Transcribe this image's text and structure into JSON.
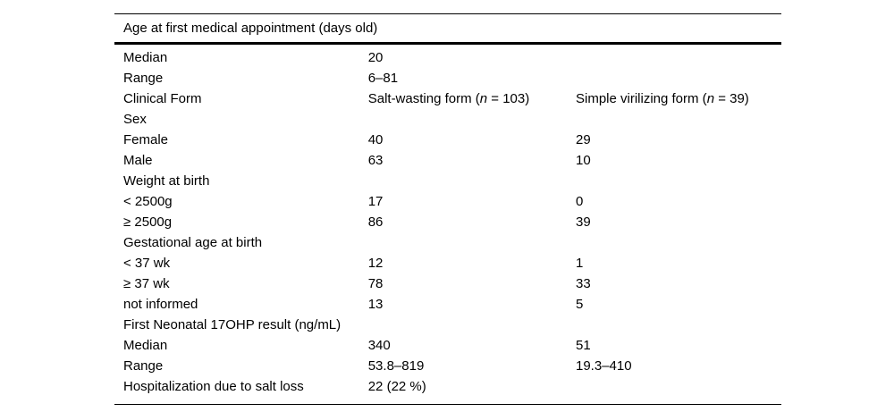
{
  "table": {
    "title": "Age at first medical appointment (days old)",
    "rows": {
      "age_median": {
        "label": "Median",
        "sw": "20",
        "sv": ""
      },
      "age_range": {
        "label": "Range",
        "sw": "6–81",
        "sv": ""
      },
      "clinical_form": {
        "label": "Clinical Form",
        "sw_prefix": "Salt-wasting form (",
        "sw_n": "n",
        "sw_suffix": " = 103)",
        "sv_prefix": "Simple virilizing form (",
        "sv_n": "n",
        "sv_suffix": " = 39)"
      },
      "sex": {
        "label": "Sex",
        "sw": "",
        "sv": ""
      },
      "female": {
        "label": "Female",
        "sw": "40",
        "sv": "29"
      },
      "male": {
        "label": "Male",
        "sw": "63",
        "sv": "10"
      },
      "weight": {
        "label": "Weight at birth",
        "sw": "",
        "sv": ""
      },
      "weight_lt2500": {
        "label": "< 2500g",
        "sw": "17",
        "sv": "0"
      },
      "weight_ge2500": {
        "label": "≥ 2500g",
        "sw": "86",
        "sv": "39"
      },
      "gestational": {
        "label": "Gestational age at birth",
        "sw": "",
        "sv": ""
      },
      "ga_lt37": {
        "label": "< 37 wk",
        "sw": "12",
        "sv": "1"
      },
      "ga_ge37": {
        "label": "≥ 37 wk",
        "sw": "78",
        "sv": "33"
      },
      "ga_not_informed": {
        "label": "not informed",
        "sw": "13",
        "sv": "5"
      },
      "ohp": {
        "label": "First Neonatal 17OHP result (ng/mL)",
        "sw": "",
        "sv": ""
      },
      "ohp_median": {
        "label": "Median",
        "sw": "340",
        "sv": "51"
      },
      "ohp_range": {
        "label": "Range",
        "sw": "53.8–819",
        "sv": "19.3–410"
      },
      "hospitalization": {
        "label": "Hospitalization due to salt loss",
        "sw": "22 (22 %)",
        "sv": ""
      }
    }
  }
}
